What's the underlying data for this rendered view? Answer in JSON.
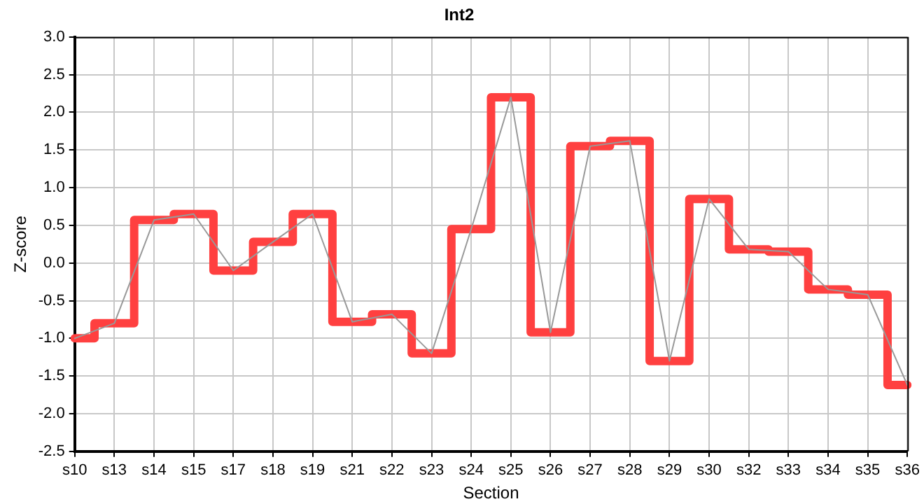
{
  "chart_data": {
    "type": "line",
    "title": "Int2",
    "xlabel": "Section",
    "ylabel": "Z-score",
    "categories": [
      "s10",
      "s13",
      "s14",
      "s15",
      "s17",
      "s18",
      "s19",
      "s21",
      "s22",
      "s23",
      "s24",
      "s25",
      "s26",
      "s27",
      "s28",
      "s29",
      "s30",
      "s32",
      "s33",
      "s34",
      "s35",
      "s36"
    ],
    "series": [
      {
        "type": "step",
        "color": "#ff4040",
        "values": [
          -1.0,
          -0.8,
          0.57,
          0.65,
          -0.1,
          0.28,
          0.65,
          -0.78,
          -0.68,
          -1.2,
          0.45,
          2.2,
          -0.92,
          1.55,
          1.62,
          -1.3,
          0.85,
          0.18,
          0.15,
          -0.35,
          -0.42,
          -1.62
        ]
      },
      {
        "type": "line",
        "color": "#999999",
        "values": [
          -1.0,
          -0.8,
          0.57,
          0.65,
          -0.1,
          0.28,
          0.65,
          -0.78,
          -0.68,
          -1.2,
          0.45,
          2.2,
          -0.92,
          1.55,
          1.62,
          -1.3,
          0.85,
          0.18,
          0.15,
          -0.35,
          -0.42,
          -1.62
        ]
      }
    ],
    "ylim": [
      -2.5,
      3.0
    ],
    "yticks": [
      {
        "value": -2.5,
        "label": "-2.5"
      },
      {
        "value": -2,
        "label": "-2.0"
      },
      {
        "value": -1.5,
        "label": "-1.5"
      },
      {
        "value": -1,
        "label": "-1.0"
      },
      {
        "value": -0.5,
        "label": "-0.5"
      },
      {
        "value": 0,
        "label": "0.0"
      },
      {
        "value": 0.5,
        "label": "0.5"
      },
      {
        "value": 1,
        "label": "1.0"
      },
      {
        "value": 1.5,
        "label": "1.5"
      },
      {
        "value": 2,
        "label": "2.0"
      },
      {
        "value": 2.5,
        "label": "2.5"
      },
      {
        "value": 3,
        "label": "3.0"
      }
    ],
    "grid": true,
    "legend": false,
    "marker": "none"
  }
}
